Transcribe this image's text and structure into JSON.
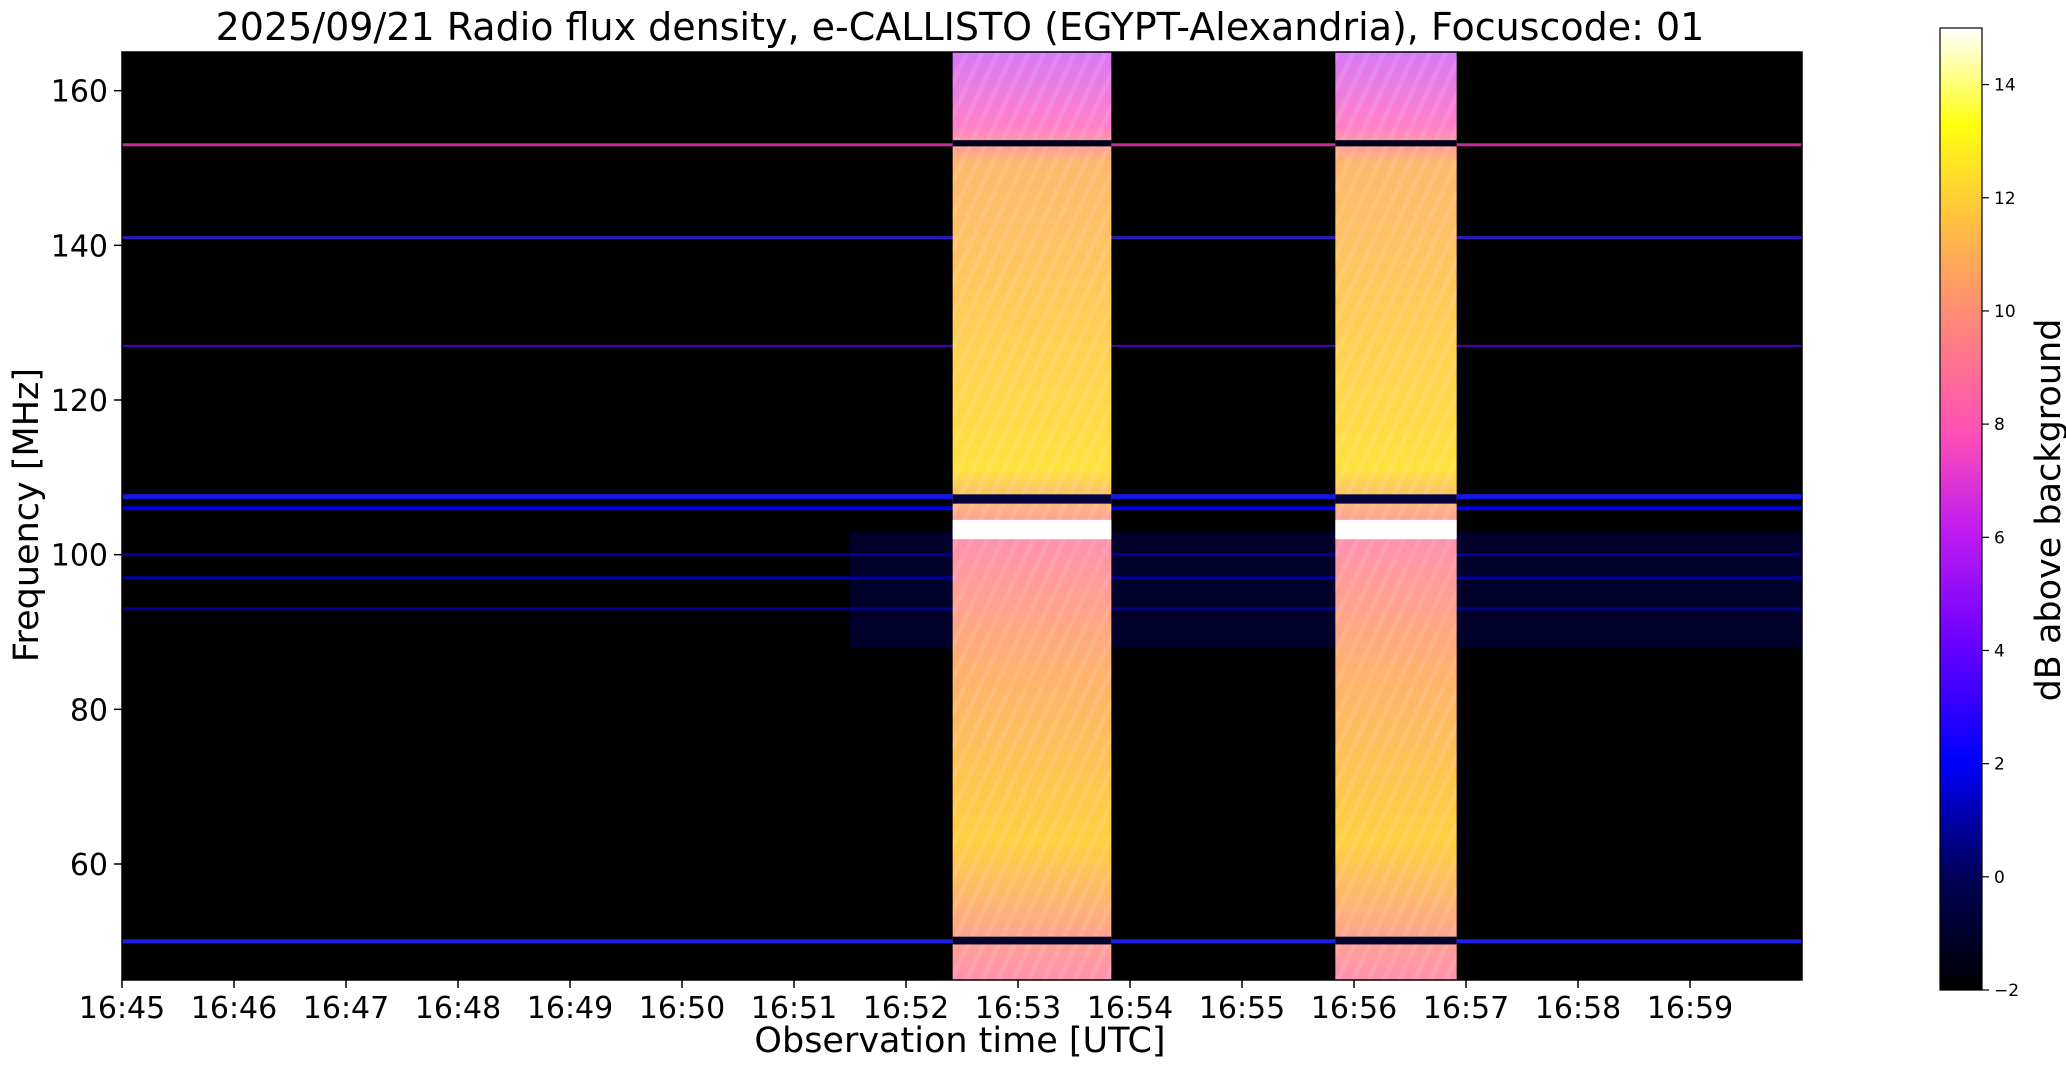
{
  "chart_data": {
    "type": "heatmap",
    "title": "2025/09/21  Radio flux density, e-CALLISTO (EGYPT-Alexandria), Focuscode: 01",
    "xlabel": "Observation time [UTC]",
    "ylabel": "Frequency [MHz]",
    "x_ticks": [
      "16:45",
      "16:46",
      "16:47",
      "16:48",
      "16:49",
      "16:50",
      "16:51",
      "16:52",
      "16:53",
      "16:54",
      "16:55",
      "16:56",
      "16:57",
      "16:58",
      "16:59"
    ],
    "x_range_minutes": [
      0,
      15
    ],
    "y_ticks": [
      60,
      80,
      100,
      120,
      140,
      160
    ],
    "ylim": [
      45,
      165
    ],
    "colorbar": {
      "label": "dB above background",
      "ticks": [
        -2,
        0,
        2,
        4,
        6,
        8,
        10,
        12,
        14
      ],
      "range": [
        -2,
        15
      ],
      "colormap": "gnuplot2",
      "stops": [
        "#000000",
        "#0000ff",
        "#8000ff",
        "#ff40c0",
        "#ffa060",
        "#ffff00",
        "#ffffff"
      ]
    },
    "bursts": [
      {
        "start": "16:52:25",
        "end": "16:53:50",
        "level_db": 12
      },
      {
        "start": "16:55:50",
        "end": "16:56:55",
        "level_db": 12
      }
    ],
    "background_bands_mhz": [
      153,
      141,
      127,
      107.5,
      106,
      50,
      100,
      97,
      93
    ]
  }
}
